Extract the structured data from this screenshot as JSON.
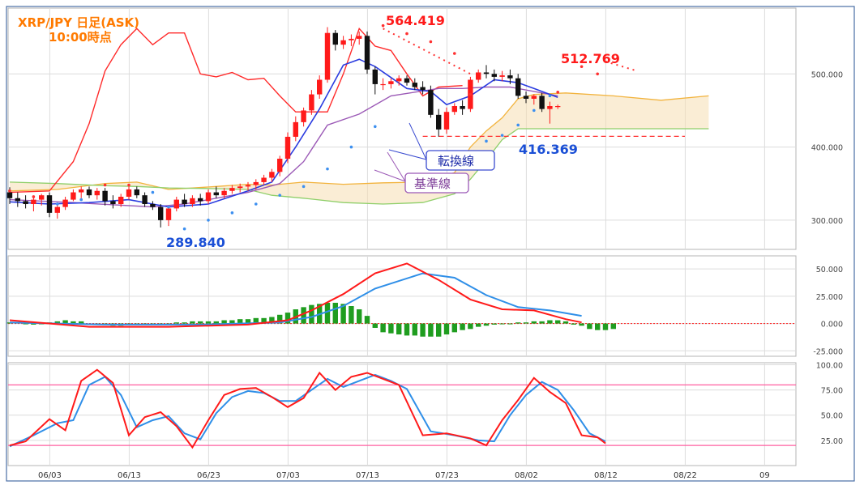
{
  "chart_data": [
    {
      "type": "candlestick",
      "panel": "price",
      "title": "XRP/JPY 日足(ASK)",
      "subtitle": "10:00時点",
      "x_ticks": [
        "06/03",
        "06/13",
        "06/23",
        "07/03",
        "07/13",
        "07/23",
        "08/02",
        "08/12",
        "08/22",
        "09"
      ],
      "y_ticks": [
        "300.000",
        "400.000",
        "500.000"
      ],
      "ylim": [
        260,
        590
      ],
      "annotations": {
        "high_1": "564.419",
        "high_2": "512.769",
        "low_1": "289.840",
        "low_2": "416.369",
        "tenkan_label": "転換線",
        "kijun_label": "基準線"
      },
      "candles": [
        [
          338,
          345,
          322,
          330
        ],
        [
          330,
          338,
          318,
          326
        ],
        [
          326,
          334,
          316,
          322
        ],
        [
          322,
          332,
          312,
          328
        ],
        [
          328,
          336,
          320,
          334
        ],
        [
          334,
          338,
          304,
          310
        ],
        [
          310,
          322,
          302,
          318
        ],
        [
          318,
          332,
          314,
          328
        ],
        [
          328,
          342,
          326,
          338
        ],
        [
          338,
          346,
          330,
          342
        ],
        [
          342,
          346,
          330,
          334
        ],
        [
          334,
          344,
          328,
          340
        ],
        [
          340,
          344,
          320,
          326
        ],
        [
          326,
          334,
          316,
          322
        ],
        [
          322,
          336,
          318,
          332
        ],
        [
          332,
          346,
          328,
          342
        ],
        [
          342,
          346,
          330,
          334
        ],
        [
          334,
          338,
          318,
          322
        ],
        [
          322,
          326,
          314,
          318
        ],
        [
          318,
          322,
          290,
          300
        ],
        [
          300,
          320,
          292,
          316
        ],
        [
          316,
          332,
          312,
          328
        ],
        [
          328,
          336,
          318,
          322
        ],
        [
          322,
          334,
          318,
          330
        ],
        [
          330,
          336,
          320,
          326
        ],
        [
          326,
          342,
          322,
          338
        ],
        [
          338,
          346,
          330,
          334
        ],
        [
          334,
          344,
          330,
          340
        ],
        [
          340,
          348,
          336,
          344
        ],
        [
          344,
          350,
          338,
          346
        ],
        [
          346,
          352,
          340,
          348
        ],
        [
          348,
          356,
          342,
          352
        ],
        [
          352,
          362,
          348,
          358
        ],
        [
          358,
          370,
          352,
          366
        ],
        [
          366,
          388,
          360,
          384
        ],
        [
          384,
          420,
          378,
          414
        ],
        [
          414,
          442,
          408,
          434
        ],
        [
          434,
          454,
          428,
          450
        ],
        [
          450,
          478,
          444,
          472
        ],
        [
          472,
          498,
          466,
          492
        ],
        [
          492,
          564,
          488,
          556
        ],
        [
          556,
          560,
          532,
          540
        ],
        [
          540,
          552,
          534,
          546
        ],
        [
          546,
          554,
          538,
          548
        ],
        [
          548,
          558,
          540,
          552
        ],
        [
          552,
          558,
          500,
          506
        ],
        [
          506,
          510,
          472,
          486
        ],
        [
          486,
          494,
          478,
          486
        ],
        [
          486,
          494,
          480,
          490
        ],
        [
          490,
          498,
          484,
          494
        ],
        [
          494,
          498,
          484,
          488
        ],
        [
          488,
          494,
          478,
          482
        ],
        [
          482,
          490,
          472,
          478
        ],
        [
          478,
          484,
          440,
          444
        ],
        [
          444,
          452,
          414,
          424
        ],
        [
          424,
          454,
          418,
          448
        ],
        [
          448,
          460,
          444,
          456
        ],
        [
          456,
          464,
          444,
          452
        ],
        [
          452,
          496,
          448,
          492
        ],
        [
          492,
          506,
          488,
          502
        ],
        [
          502,
          512,
          494,
          500
        ],
        [
          500,
          506,
          490,
          496
        ],
        [
          496,
          504,
          490,
          498
        ],
        [
          498,
          506,
          486,
          494
        ],
        [
          494,
          500,
          466,
          470
        ],
        [
          470,
          476,
          460,
          466
        ],
        [
          466,
          472,
          458,
          470
        ],
        [
          470,
          474,
          448,
          452
        ],
        [
          452,
          462,
          432,
          456
        ],
        [
          456,
          458,
          452,
          456
        ]
      ],
      "tenkan": [
        [
          0,
          325
        ],
        [
          5,
          322
        ],
        [
          10,
          324
        ],
        [
          15,
          328
        ],
        [
          20,
          318
        ],
        [
          25,
          322
        ],
        [
          30,
          340
        ],
        [
          33,
          352
        ],
        [
          36,
          400
        ],
        [
          39,
          452
        ],
        [
          42,
          512
        ],
        [
          44,
          520
        ],
        [
          46,
          510
        ],
        [
          50,
          480
        ],
        [
          53,
          476
        ],
        [
          55,
          458
        ],
        [
          58,
          470
        ],
        [
          61,
          492
        ],
        [
          64,
          488
        ],
        [
          66,
          480
        ],
        [
          69,
          468
        ]
      ],
      "kijun": [
        [
          0,
          328
        ],
        [
          8,
          324
        ],
        [
          18,
          318
        ],
        [
          22,
          322
        ],
        [
          30,
          338
        ],
        [
          34,
          350
        ],
        [
          37,
          380
        ],
        [
          40,
          430
        ],
        [
          44,
          445
        ],
        [
          48,
          470
        ],
        [
          54,
          480
        ],
        [
          57,
          480
        ],
        [
          60,
          482
        ],
        [
          63,
          482
        ],
        [
          66,
          476
        ],
        [
          69,
          470
        ]
      ],
      "chikou": [
        [
          0,
          338
        ],
        [
          5,
          340
        ],
        [
          8,
          380
        ],
        [
          10,
          432
        ],
        [
          12,
          504
        ],
        [
          14,
          540
        ],
        [
          16,
          562
        ],
        [
          18,
          540
        ],
        [
          20,
          556
        ],
        [
          22,
          556
        ],
        [
          24,
          500
        ],
        [
          26,
          496
        ],
        [
          28,
          502
        ],
        [
          30,
          492
        ],
        [
          32,
          494
        ],
        [
          34,
          470
        ],
        [
          36,
          448
        ],
        [
          40,
          448
        ],
        [
          42,
          500
        ],
        [
          44,
          562
        ],
        [
          46,
          538
        ],
        [
          48,
          532
        ],
        [
          50,
          500
        ],
        [
          52,
          470
        ],
        [
          54,
          482
        ],
        [
          57,
          484
        ]
      ],
      "senkou_a": [
        [
          0,
          340
        ],
        [
          6,
          342
        ],
        [
          12,
          350
        ],
        [
          16,
          352
        ],
        [
          20,
          342
        ],
        [
          26,
          346
        ],
        [
          30,
          349
        ],
        [
          33,
          348
        ],
        [
          37,
          352
        ],
        [
          42,
          349
        ],
        [
          47,
          351
        ],
        [
          52,
          352
        ],
        [
          56,
          365
        ],
        [
          58,
          400
        ],
        [
          60,
          422
        ],
        [
          62,
          440
        ],
        [
          64,
          466
        ],
        [
          66,
          472
        ],
        [
          70,
          474
        ],
        [
          76,
          470
        ],
        [
          82,
          464
        ],
        [
          88,
          470
        ]
      ],
      "senkou_b": [
        [
          0,
          352
        ],
        [
          6,
          350
        ],
        [
          12,
          347
        ],
        [
          16,
          346
        ],
        [
          20,
          344
        ],
        [
          26,
          343
        ],
        [
          30,
          342
        ],
        [
          33,
          334
        ],
        [
          37,
          330
        ],
        [
          42,
          324
        ],
        [
          47,
          322
        ],
        [
          52,
          324
        ],
        [
          56,
          336
        ],
        [
          58,
          356
        ],
        [
          60,
          382
        ],
        [
          62,
          410
        ],
        [
          64,
          425
        ],
        [
          66,
          425
        ],
        [
          70,
          425
        ],
        [
          76,
          425
        ],
        [
          82,
          425
        ],
        [
          88,
          425
        ]
      ],
      "psar": [
        [
          0,
          340
        ],
        [
          3,
          332
        ],
        [
          6,
          322
        ],
        [
          9,
          328
        ],
        [
          12,
          348
        ],
        [
          15,
          348
        ],
        [
          18,
          338
        ],
        [
          20,
          318
        ],
        [
          22,
          288
        ],
        [
          25,
          300
        ],
        [
          28,
          310
        ],
        [
          31,
          322
        ],
        [
          34,
          334
        ],
        [
          37,
          346
        ],
        [
          40,
          370
        ],
        [
          43,
          400
        ],
        [
          46,
          428
        ],
        [
          47,
          566
        ],
        [
          50,
          555
        ],
        [
          53,
          544
        ],
        [
          56,
          528
        ],
        [
          58,
          472
        ],
        [
          60,
          408
        ],
        [
          62,
          416
        ],
        [
          64,
          430
        ],
        [
          66,
          450
        ],
        [
          68,
          470
        ],
        [
          69,
          475
        ],
        [
          72,
          510
        ],
        [
          74,
          500
        ]
      ],
      "hline_low2": 414.6
    },
    {
      "type": "macd",
      "panel": "macd",
      "y_ticks": [
        "50.000",
        "25.000",
        "0.000",
        "-25.000"
      ],
      "ylim": [
        -30,
        62
      ],
      "macd": [
        [
          0,
          3
        ],
        [
          10,
          -3
        ],
        [
          20,
          -3
        ],
        [
          30,
          -1
        ],
        [
          35,
          3
        ],
        [
          38,
          12
        ],
        [
          42,
          27
        ],
        [
          46,
          46
        ],
        [
          50,
          55
        ],
        [
          54,
          40
        ],
        [
          58,
          22
        ],
        [
          62,
          13
        ],
        [
          66,
          12
        ],
        [
          70,
          4
        ],
        [
          72,
          1
        ]
      ],
      "signal": [
        [
          0,
          1
        ],
        [
          12,
          -1
        ],
        [
          24,
          -1
        ],
        [
          34,
          1
        ],
        [
          38,
          6
        ],
        [
          42,
          16
        ],
        [
          46,
          32
        ],
        [
          52,
          46
        ],
        [
          56,
          42
        ],
        [
          60,
          26
        ],
        [
          64,
          15
        ],
        [
          68,
          12
        ],
        [
          72,
          7
        ]
      ],
      "histogram": [
        1,
        1,
        0,
        -1,
        0,
        1,
        2,
        3,
        2,
        2,
        -1,
        -1,
        -1,
        -2,
        -2,
        -1,
        -1,
        -1,
        0,
        0,
        0,
        1,
        1,
        2,
        2,
        2,
        2,
        3,
        3,
        4,
        4,
        5,
        5,
        6,
        8,
        10,
        13,
        15,
        17,
        18,
        19,
        19,
        18,
        16,
        13,
        7,
        -4,
        -8,
        -9,
        -10,
        -11,
        -11,
        -12,
        -12,
        -12,
        -10,
        -8,
        -6,
        -5,
        -3,
        -2,
        -1,
        0,
        0,
        1,
        1,
        2,
        2,
        3,
        3,
        2,
        -1,
        -2,
        -5,
        -6,
        -6,
        -5
      ]
    },
    {
      "type": "stochastic",
      "panel": "stochastic",
      "y_ticks": [
        "100.00",
        "75.00",
        "50.00",
        "25.00"
      ],
      "ylim": [
        0,
        102
      ],
      "upper_level": 80,
      "lower_level": 20,
      "k": [
        [
          0,
          20
        ],
        [
          2,
          24
        ],
        [
          5,
          46
        ],
        [
          7,
          35
        ],
        [
          9,
          84
        ],
        [
          11,
          95
        ],
        [
          13,
          82
        ],
        [
          15,
          30
        ],
        [
          17,
          48
        ],
        [
          19,
          53
        ],
        [
          21,
          39
        ],
        [
          23,
          18
        ],
        [
          25,
          45
        ],
        [
          27,
          70
        ],
        [
          29,
          76
        ],
        [
          31,
          77
        ],
        [
          33,
          68
        ],
        [
          35,
          58
        ],
        [
          37,
          67
        ],
        [
          39,
          92
        ],
        [
          41,
          75
        ],
        [
          43,
          88
        ],
        [
          45,
          92
        ],
        [
          47,
          86
        ],
        [
          49,
          80
        ],
        [
          52,
          30
        ],
        [
          55,
          32
        ],
        [
          58,
          27
        ],
        [
          60,
          20
        ],
        [
          62,
          45
        ],
        [
          64,
          65
        ],
        [
          66,
          87
        ],
        [
          68,
          73
        ],
        [
          70,
          62
        ],
        [
          72,
          30
        ],
        [
          74,
          28
        ],
        [
          75,
          22
        ]
      ],
      "d": [
        [
          0,
          19
        ],
        [
          3,
          30
        ],
        [
          6,
          42
        ],
        [
          8,
          45
        ],
        [
          10,
          80
        ],
        [
          12,
          88
        ],
        [
          14,
          70
        ],
        [
          16,
          38
        ],
        [
          18,
          45
        ],
        [
          20,
          49
        ],
        [
          22,
          32
        ],
        [
          24,
          26
        ],
        [
          26,
          52
        ],
        [
          28,
          68
        ],
        [
          30,
          74
        ],
        [
          32,
          72
        ],
        [
          34,
          64
        ],
        [
          36,
          64
        ],
        [
          38,
          75
        ],
        [
          40,
          86
        ],
        [
          42,
          78
        ],
        [
          44,
          84
        ],
        [
          46,
          90
        ],
        [
          48,
          84
        ],
        [
          50,
          76
        ],
        [
          53,
          34
        ],
        [
          56,
          30
        ],
        [
          59,
          25
        ],
        [
          61,
          24
        ],
        [
          63,
          50
        ],
        [
          65,
          70
        ],
        [
          67,
          83
        ],
        [
          69,
          75
        ],
        [
          71,
          55
        ],
        [
          73,
          32
        ],
        [
          75,
          24
        ]
      ]
    }
  ]
}
